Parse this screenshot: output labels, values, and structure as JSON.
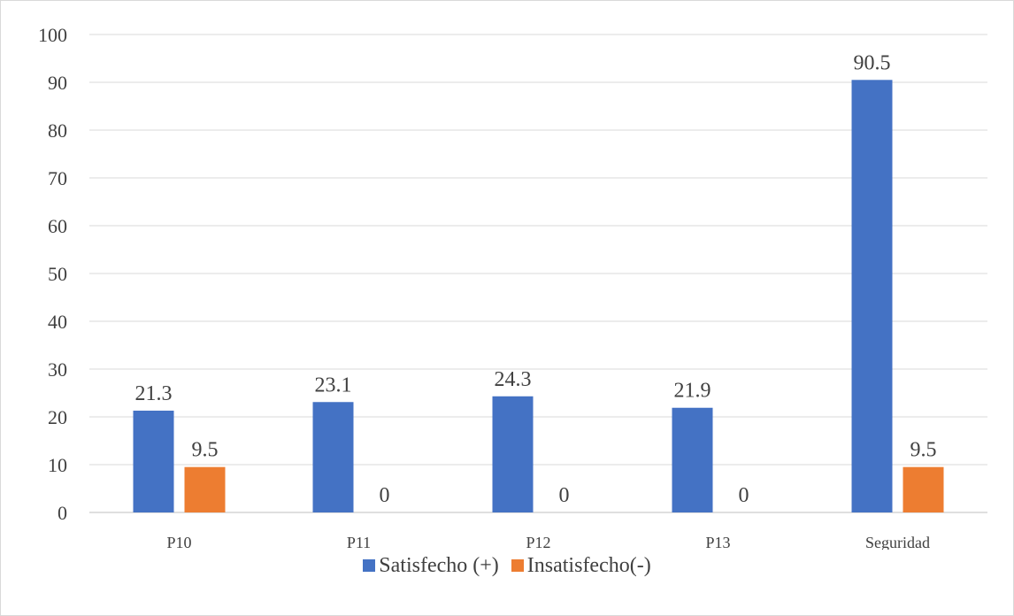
{
  "chart_data": {
    "type": "bar",
    "categories": [
      "P10",
      "P11",
      "P12",
      "P13",
      "Seguridad"
    ],
    "series": [
      {
        "name": "Satisfecho (+)",
        "values": [
          21.3,
          23.1,
          24.3,
          21.9,
          90.5
        ],
        "color": "#4472C4"
      },
      {
        "name": "Insatisfecho(-)",
        "values": [
          9.5,
          0,
          0,
          0,
          9.5
        ],
        "color": "#ED7D31"
      }
    ],
    "data_labels": [
      [
        "21.3",
        "23.1",
        "24.3",
        "21.9",
        "90.5"
      ],
      [
        "9.5",
        "0",
        "0",
        "0",
        "9.5"
      ]
    ],
    "y_ticks": [
      "0",
      "10",
      "20",
      "30",
      "40",
      "50",
      "60",
      "70",
      "80",
      "90",
      "100"
    ],
    "ylim": [
      0,
      100
    ],
    "grid": true,
    "legend_position": "bottom",
    "title": "",
    "xlabel": "",
    "ylabel": ""
  }
}
